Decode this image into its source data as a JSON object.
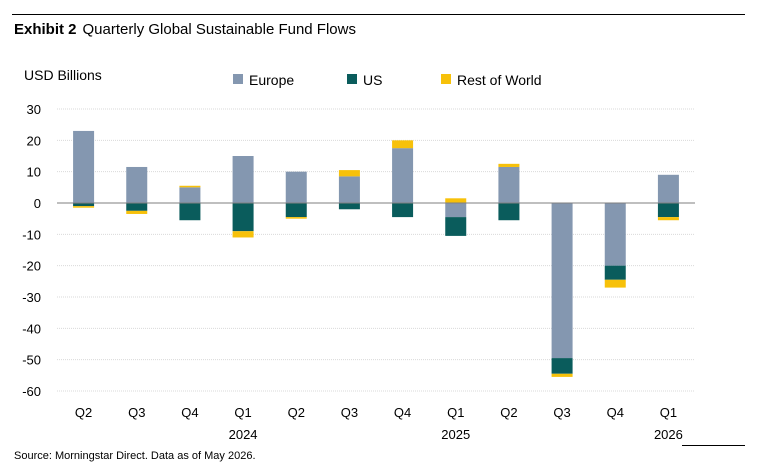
{
  "exhibit": {
    "label": "Exhibit 2",
    "title": "Quarterly Global Sustainable Fund Flows"
  },
  "source": "Source: Morningstar Direct. Data as of May 2026.",
  "chart_data": {
    "type": "bar",
    "stacked": true,
    "ylabel": "USD Billions",
    "ylim": [
      -60,
      30
    ],
    "yticks": [
      30,
      20,
      10,
      0,
      -10,
      -20,
      -30,
      -40,
      -50,
      -60
    ],
    "grid": true,
    "legend_position": "top",
    "categories": [
      "Q2",
      "Q3",
      "Q4",
      "Q1",
      "Q2",
      "Q3",
      "Q4",
      "Q1",
      "Q2",
      "Q3",
      "Q4",
      "Q1"
    ],
    "year_labels": [
      {
        "index": 3,
        "label": "2024"
      },
      {
        "index": 7,
        "label": "2025"
      },
      {
        "index": 11,
        "label": "2026"
      }
    ],
    "series": [
      {
        "name": "Europe",
        "color": "#8497b0",
        "values": [
          23,
          11.5,
          5,
          15,
          10,
          8.5,
          17.5,
          -4.5,
          11.5,
          -49.5,
          -20,
          9
        ]
      },
      {
        "name": "US",
        "color": "#0a5c5c",
        "values": [
          -1,
          -2.5,
          -5.5,
          -9,
          -4.5,
          -2,
          -4.5,
          -6,
          -5.5,
          -5,
          -4.5,
          -4.5
        ]
      },
      {
        "name": "Rest of World",
        "color": "#f7c10a",
        "values": [
          -0.5,
          -1,
          0.5,
          -2,
          -0.5,
          2,
          2.5,
          1.5,
          1,
          -1,
          -2.5,
          -1
        ]
      }
    ]
  }
}
